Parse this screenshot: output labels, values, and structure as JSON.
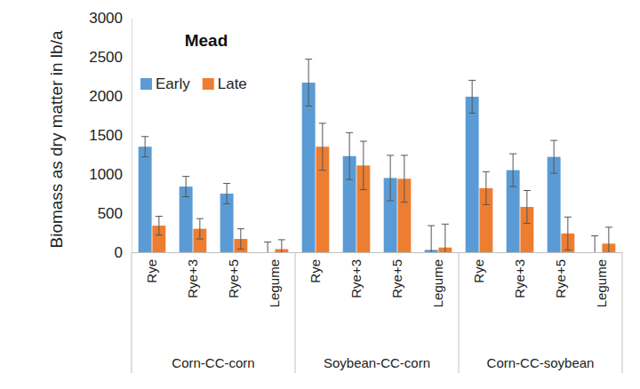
{
  "chart_data": {
    "type": "bar",
    "title": "Mead",
    "y_label": "Biomass as dry matter in lb/a",
    "categories": [
      "Rye",
      "Rye+3",
      "Rye+5",
      "Legume",
      "Rye",
      "Rye+3",
      "Rye+5",
      "Legume",
      "Rye",
      "Rye+3",
      "Rye+5",
      "Legume"
    ],
    "groups": [
      "Corn-CC-corn",
      "Soybean-CC-corn",
      "Corn-CC-soybean"
    ],
    "series": [
      {
        "name": "Early",
        "color": "#5b9bd5",
        "values": [
          1350,
          840,
          750,
          0,
          2170,
          1230,
          950,
          30,
          1990,
          1050,
          1220,
          0
        ],
        "errors": [
          130,
          130,
          130,
          130,
          300,
          300,
          290,
          310,
          210,
          210,
          210,
          210
        ]
      },
      {
        "name": "Late",
        "color": "#ed7d31",
        "values": [
          340,
          300,
          170,
          40,
          1350,
          1110,
          940,
          60,
          820,
          580,
          240,
          110
        ],
        "errors": [
          120,
          130,
          130,
          120,
          300,
          310,
          300,
          300,
          210,
          210,
          210,
          210
        ]
      }
    ],
    "ylim": [
      0,
      3000
    ],
    "yticks": [
      0,
      500,
      1000,
      1500,
      2000,
      2500,
      3000
    ],
    "grid": false,
    "legend": "upper left"
  }
}
